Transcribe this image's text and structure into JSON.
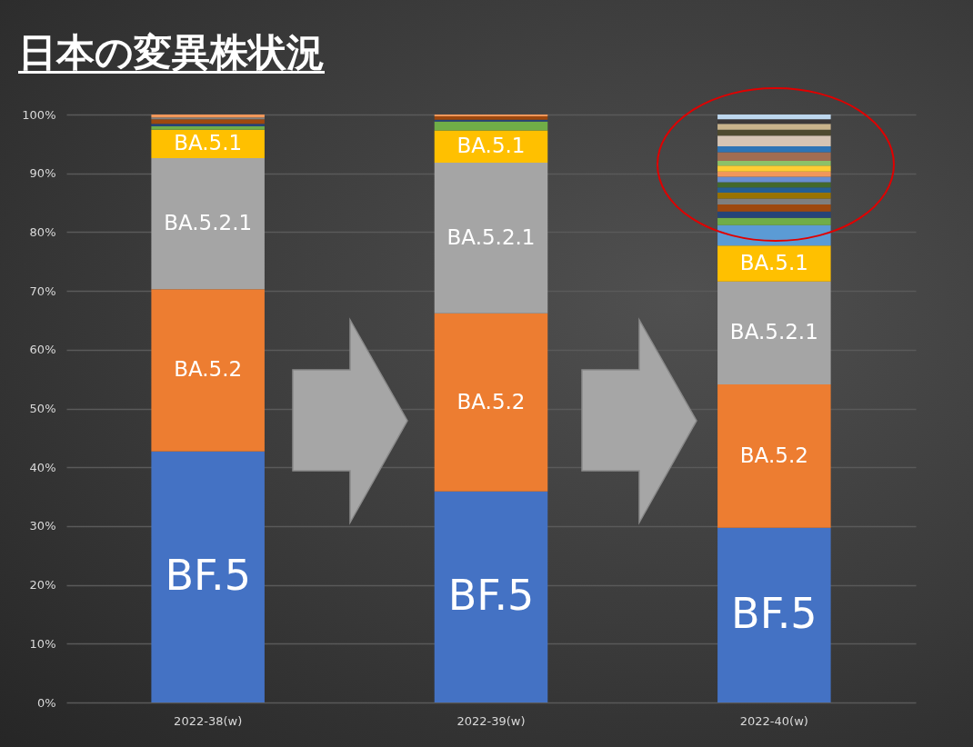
{
  "chart_data": {
    "type": "bar",
    "stacked": true,
    "title": "日本の変異株状況",
    "categories": [
      "2022-38(w)",
      "2022-39(w)",
      "2022-40(w)"
    ],
    "series": [
      {
        "name": "BF.5",
        "color": "#4472c4",
        "values": [
          42.7,
          35.9,
          29.7
        ]
      },
      {
        "name": "BA.5.2",
        "color": "#ed7d31",
        "values": [
          27.6,
          30.3,
          24.4
        ]
      },
      {
        "name": "BA.5.2.1",
        "color": "#a5a5a5",
        "values": [
          22.3,
          25.6,
          17.5
        ]
      },
      {
        "name": "BA.5.1",
        "color": "#ffc000",
        "values": [
          4.8,
          5.5,
          6.1
        ]
      },
      {
        "color": "#5b9bd5",
        "values": [
          null,
          null,
          3.5
        ]
      },
      {
        "color": "#70ad47",
        "values": [
          0.6,
          1.5,
          1.2
        ]
      },
      {
        "color": "#264478",
        "values": [
          0.4,
          0.3,
          1.1
        ]
      },
      {
        "color": "#9e480e",
        "values": [
          0.8,
          0.6,
          1.2
        ]
      },
      {
        "color": "#7f7f7f",
        "values": [
          0.3,
          null,
          1.0
        ]
      },
      {
        "color": "#997300",
        "values": [
          null,
          null,
          1.0
        ]
      },
      {
        "color": "#255e91",
        "values": [
          null,
          null,
          0.9
        ]
      },
      {
        "color": "#43682b",
        "values": [
          null,
          null,
          0.9
        ]
      },
      {
        "color": "#698ed0",
        "values": [
          null,
          null,
          0.9
        ]
      },
      {
        "color": "#f1975a",
        "values": [
          0.5,
          0.3,
          0.9
        ]
      },
      {
        "color": "#ffcd33",
        "values": [
          null,
          null,
          1.0
        ]
      },
      {
        "color": "#8cc168",
        "values": [
          null,
          null,
          0.8
        ]
      },
      {
        "color": "#a16d52",
        "values": [
          null,
          null,
          1.5
        ]
      },
      {
        "color": "#2e75b6",
        "values": [
          null,
          null,
          1.0
        ]
      },
      {
        "color": "#d6c5b4",
        "values": [
          null,
          null,
          1.8
        ]
      },
      {
        "color": "#4e4a2f",
        "values": [
          null,
          null,
          1.0
        ]
      },
      {
        "color": "#c9b38b",
        "values": [
          null,
          null,
          1.0
        ]
      },
      {
        "color": "#3b3838",
        "values": [
          null,
          null,
          0.8
        ]
      },
      {
        "color": "#bdd7ee",
        "values": [
          null,
          null,
          0.8
        ]
      }
    ],
    "ylim": [
      0,
      100
    ],
    "yticks": [
      {
        "value": 0,
        "label": "0%"
      },
      {
        "value": 10,
        "label": "10%"
      },
      {
        "value": 20,
        "label": "20%"
      },
      {
        "value": 30,
        "label": "30%"
      },
      {
        "value": 40,
        "label": "40%"
      },
      {
        "value": 50,
        "label": "50%"
      },
      {
        "value": 60,
        "label": "60%"
      },
      {
        "value": 70,
        "label": "70%"
      },
      {
        "value": 80,
        "label": "80%"
      },
      {
        "value": 90,
        "label": "90%"
      },
      {
        "value": 100,
        "label": "100%"
      }
    ],
    "grid": "y"
  }
}
